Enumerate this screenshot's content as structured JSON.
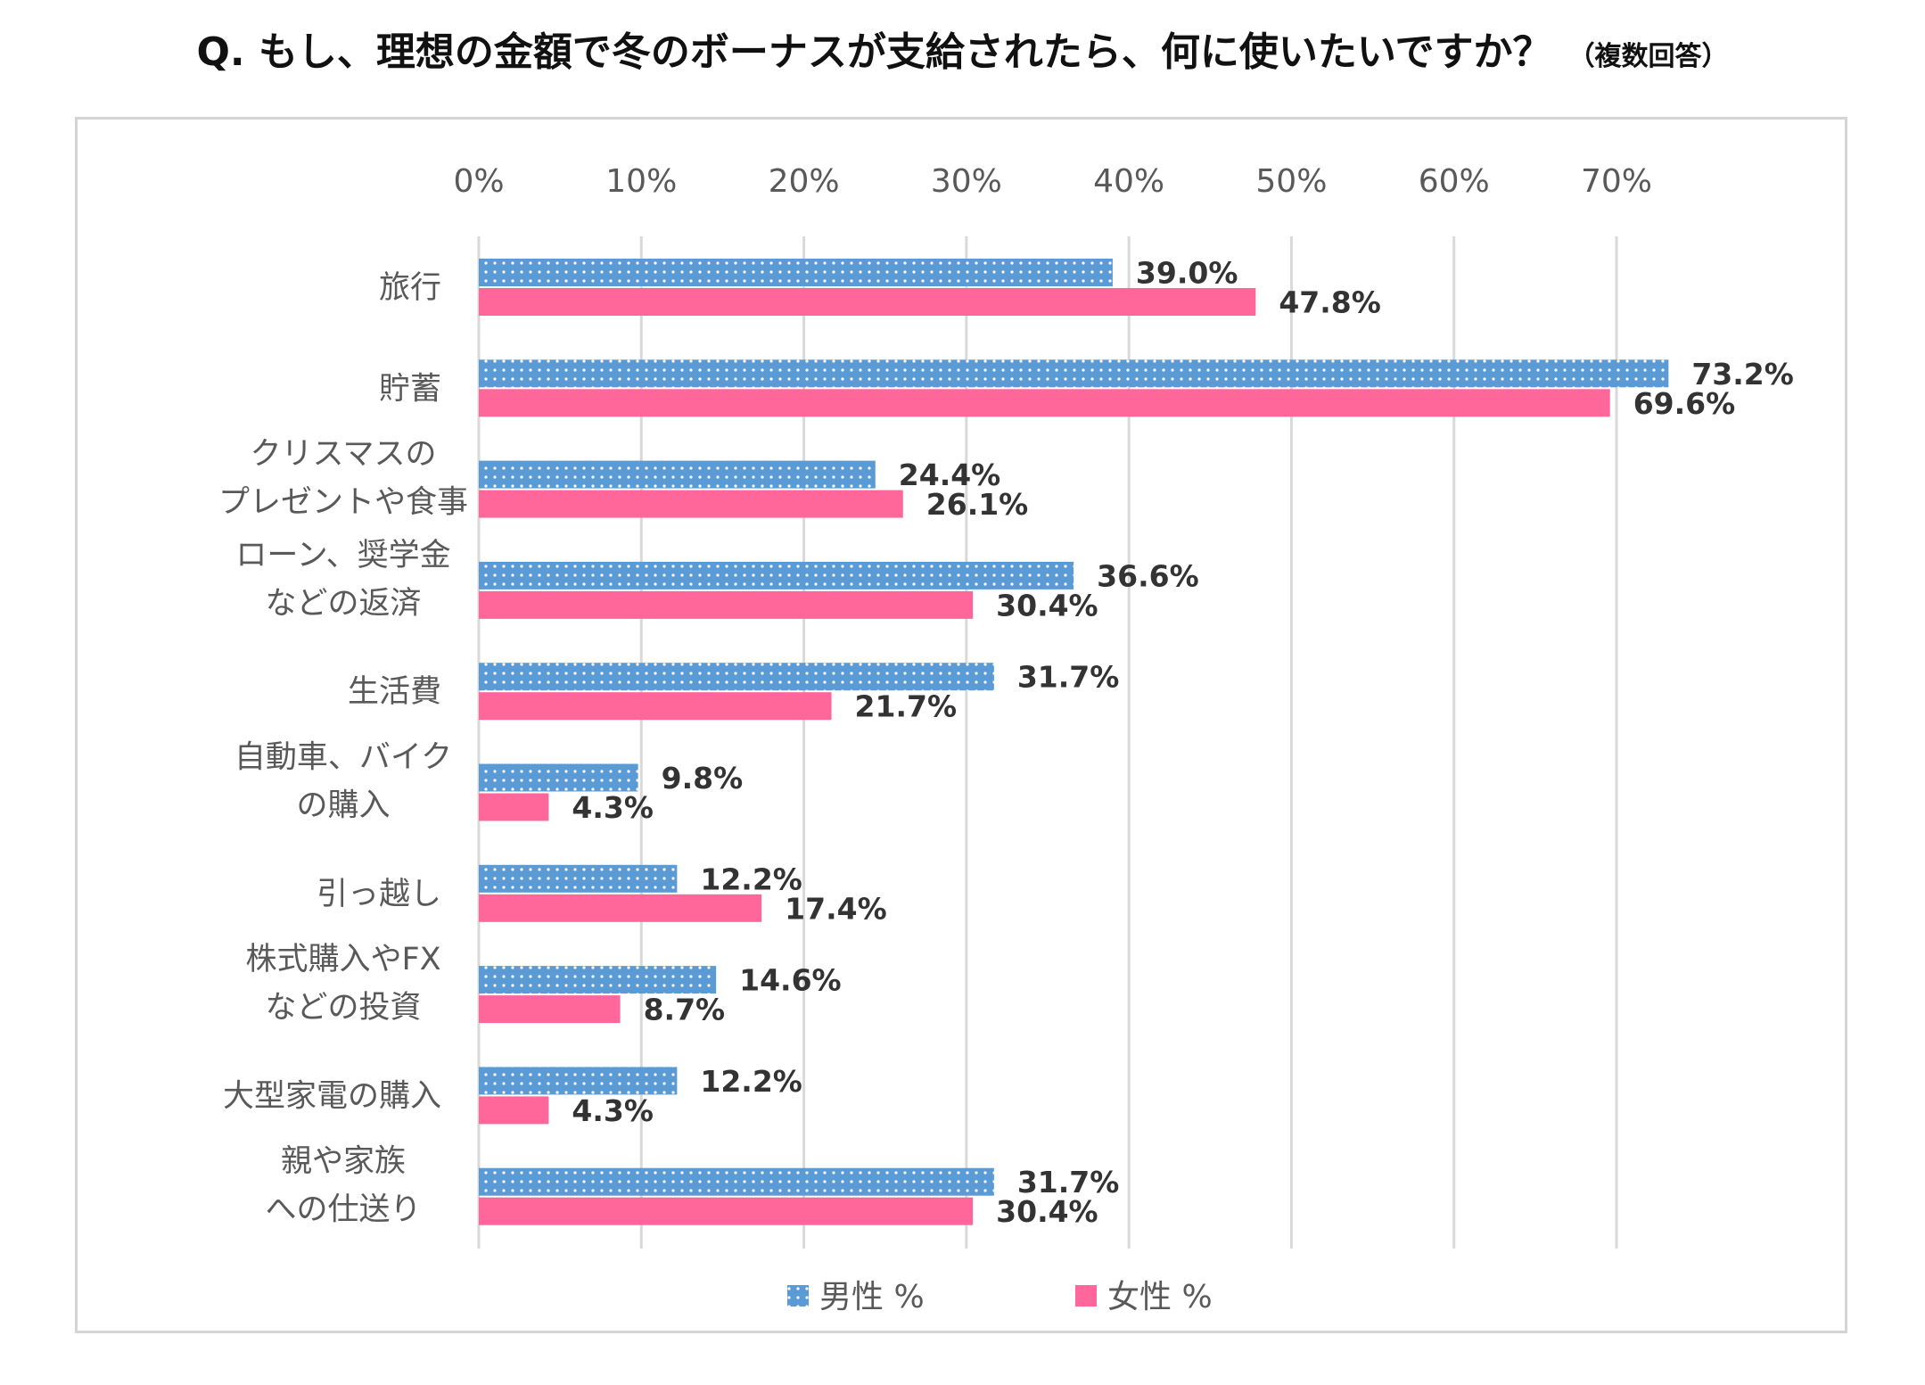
{
  "title": {
    "main": "Q. もし、理想の金額で冬のボーナスが支給されたら、何に使いたいですか？",
    "sub": "（複数回答）"
  },
  "colors": {
    "male": "#5b9bd5",
    "male_dot": "#ffffff",
    "female": "#ff6699",
    "grid": "#d9d9d9",
    "frame": "#d4d4d4"
  },
  "chart_data": {
    "type": "bar",
    "orientation": "horizontal",
    "xlim": [
      0,
      70
    ],
    "x_ticks": [
      "0%",
      "10%",
      "20%",
      "30%",
      "40%",
      "50%",
      "60%",
      "70%"
    ],
    "x_tick_values": [
      0,
      10,
      20,
      30,
      40,
      50,
      60,
      70
    ],
    "x_axis_position": "top",
    "grid": true,
    "legend_position": "bottom",
    "categories": [
      [
        "旅行"
      ],
      [
        "貯蓄"
      ],
      [
        "クリスマスの",
        "プレゼントや食事"
      ],
      [
        "ローン、奨学金",
        "などの返済"
      ],
      [
        "生活費"
      ],
      [
        "自動車、バイク",
        "の購入"
      ],
      [
        "引っ越し"
      ],
      [
        "株式購入やFX",
        "などの投資"
      ],
      [
        "大型家電の購入"
      ],
      [
        "親や家族",
        "への仕送り"
      ]
    ],
    "series": [
      {
        "name": "男性 %",
        "values": [
          39.0,
          73.2,
          24.4,
          36.6,
          31.7,
          9.8,
          12.2,
          14.6,
          12.2,
          31.7
        ],
        "labels": [
          "39.0%",
          "73.2%",
          "24.4%",
          "36.6%",
          "31.7%",
          "9.8%",
          "12.2%",
          "14.6%",
          "12.2%",
          "31.7%"
        ]
      },
      {
        "name": "女性 %",
        "values": [
          47.8,
          69.6,
          26.1,
          30.4,
          21.7,
          4.3,
          17.4,
          8.7,
          4.3,
          30.4
        ],
        "labels": [
          "47.8%",
          "69.6%",
          "26.1%",
          "30.4%",
          "21.7%",
          "4.3%",
          "17.4%",
          "8.7%",
          "4.3%",
          "30.4%"
        ]
      }
    ]
  }
}
